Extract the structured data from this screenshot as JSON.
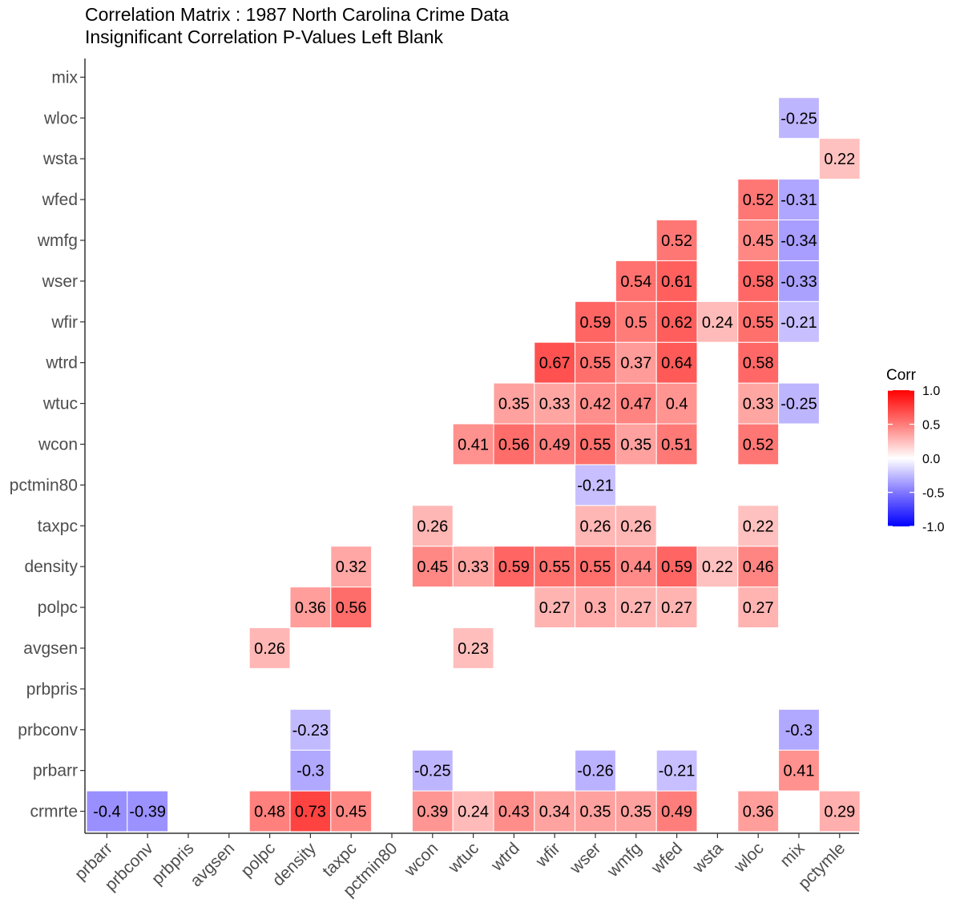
{
  "chart_data": {
    "type": "heatmap",
    "title": "Correlation Matrix : 1987 North Carolina Crime Data",
    "subtitle": "Insignificant Correlation P-Values Left Blank",
    "x_labels": [
      "prbarr",
      "prbconv",
      "prbpris",
      "avgsen",
      "polpc",
      "density",
      "taxpc",
      "pctmin80",
      "wcon",
      "wtuc",
      "wtrd",
      "wfir",
      "wser",
      "wmfg",
      "wfed",
      "wsta",
      "wloc",
      "mix",
      "pctymle"
    ],
    "y_labels": [
      "crmrte",
      "prbarr",
      "prbconv",
      "prbpris",
      "avgsen",
      "polpc",
      "density",
      "taxpc",
      "pctmin80",
      "wcon",
      "wtuc",
      "wtrd",
      "wfir",
      "wser",
      "wmfg",
      "wfed",
      "wsta",
      "wloc",
      "mix"
    ],
    "cells": [
      {
        "x": "prbarr",
        "y": "crmrte",
        "value": -0.4
      },
      {
        "x": "prbconv",
        "y": "crmrte",
        "value": -0.39
      },
      {
        "x": "polpc",
        "y": "crmrte",
        "value": 0.48
      },
      {
        "x": "density",
        "y": "crmrte",
        "value": 0.73
      },
      {
        "x": "taxpc",
        "y": "crmrte",
        "value": 0.45
      },
      {
        "x": "wcon",
        "y": "crmrte",
        "value": 0.39
      },
      {
        "x": "wtuc",
        "y": "crmrte",
        "value": 0.24
      },
      {
        "x": "wtrd",
        "y": "crmrte",
        "value": 0.43
      },
      {
        "x": "wfir",
        "y": "crmrte",
        "value": 0.34
      },
      {
        "x": "wser",
        "y": "crmrte",
        "value": 0.35
      },
      {
        "x": "wmfg",
        "y": "crmrte",
        "value": 0.35
      },
      {
        "x": "wfed",
        "y": "crmrte",
        "value": 0.49
      },
      {
        "x": "wloc",
        "y": "crmrte",
        "value": 0.36
      },
      {
        "x": "pctymle",
        "y": "crmrte",
        "value": 0.29
      },
      {
        "x": "density",
        "y": "prbarr",
        "value": -0.3
      },
      {
        "x": "wcon",
        "y": "prbarr",
        "value": -0.25
      },
      {
        "x": "wser",
        "y": "prbarr",
        "value": -0.26
      },
      {
        "x": "wfed",
        "y": "prbarr",
        "value": -0.21
      },
      {
        "x": "mix",
        "y": "prbarr",
        "value": 0.41
      },
      {
        "x": "density",
        "y": "prbconv",
        "value": -0.23
      },
      {
        "x": "mix",
        "y": "prbconv",
        "value": -0.3
      },
      {
        "x": "polpc",
        "y": "avgsen",
        "value": 0.26
      },
      {
        "x": "wtuc",
        "y": "avgsen",
        "value": 0.23
      },
      {
        "x": "density",
        "y": "polpc",
        "value": 0.36
      },
      {
        "x": "taxpc",
        "y": "polpc",
        "value": 0.56
      },
      {
        "x": "wfir",
        "y": "polpc",
        "value": 0.27
      },
      {
        "x": "wser",
        "y": "polpc",
        "value": 0.3
      },
      {
        "x": "wmfg",
        "y": "polpc",
        "value": 0.27
      },
      {
        "x": "wfed",
        "y": "polpc",
        "value": 0.27
      },
      {
        "x": "wloc",
        "y": "polpc",
        "value": 0.27
      },
      {
        "x": "taxpc",
        "y": "density",
        "value": 0.32
      },
      {
        "x": "wcon",
        "y": "density",
        "value": 0.45
      },
      {
        "x": "wtuc",
        "y": "density",
        "value": 0.33
      },
      {
        "x": "wtrd",
        "y": "density",
        "value": 0.59
      },
      {
        "x": "wfir",
        "y": "density",
        "value": 0.55
      },
      {
        "x": "wser",
        "y": "density",
        "value": 0.55
      },
      {
        "x": "wmfg",
        "y": "density",
        "value": 0.44
      },
      {
        "x": "wfed",
        "y": "density",
        "value": 0.59
      },
      {
        "x": "wsta",
        "y": "density",
        "value": 0.22
      },
      {
        "x": "wloc",
        "y": "density",
        "value": 0.46
      },
      {
        "x": "wcon",
        "y": "taxpc",
        "value": 0.26
      },
      {
        "x": "wser",
        "y": "taxpc",
        "value": 0.26
      },
      {
        "x": "wmfg",
        "y": "taxpc",
        "value": 0.26
      },
      {
        "x": "wloc",
        "y": "taxpc",
        "value": 0.22
      },
      {
        "x": "wser",
        "y": "pctmin80",
        "value": -0.21
      },
      {
        "x": "wtuc",
        "y": "wcon",
        "value": 0.41
      },
      {
        "x": "wtrd",
        "y": "wcon",
        "value": 0.56
      },
      {
        "x": "wfir",
        "y": "wcon",
        "value": 0.49
      },
      {
        "x": "wser",
        "y": "wcon",
        "value": 0.55
      },
      {
        "x": "wmfg",
        "y": "wcon",
        "value": 0.35
      },
      {
        "x": "wfed",
        "y": "wcon",
        "value": 0.51
      },
      {
        "x": "wloc",
        "y": "wcon",
        "value": 0.52
      },
      {
        "x": "wtrd",
        "y": "wtuc",
        "value": 0.35
      },
      {
        "x": "wfir",
        "y": "wtuc",
        "value": 0.33
      },
      {
        "x": "wser",
        "y": "wtuc",
        "value": 0.42
      },
      {
        "x": "wmfg",
        "y": "wtuc",
        "value": 0.47
      },
      {
        "x": "wfed",
        "y": "wtuc",
        "value": 0.4
      },
      {
        "x": "wloc",
        "y": "wtuc",
        "value": 0.33
      },
      {
        "x": "mix",
        "y": "wtuc",
        "value": -0.25
      },
      {
        "x": "wfir",
        "y": "wtrd",
        "value": 0.67
      },
      {
        "x": "wser",
        "y": "wtrd",
        "value": 0.55
      },
      {
        "x": "wmfg",
        "y": "wtrd",
        "value": 0.37
      },
      {
        "x": "wfed",
        "y": "wtrd",
        "value": 0.64
      },
      {
        "x": "wloc",
        "y": "wtrd",
        "value": 0.58
      },
      {
        "x": "wser",
        "y": "wfir",
        "value": 0.59
      },
      {
        "x": "wmfg",
        "y": "wfir",
        "value": 0.5
      },
      {
        "x": "wfed",
        "y": "wfir",
        "value": 0.62
      },
      {
        "x": "wsta",
        "y": "wfir",
        "value": 0.24
      },
      {
        "x": "wloc",
        "y": "wfir",
        "value": 0.55
      },
      {
        "x": "mix",
        "y": "wfir",
        "value": -0.21
      },
      {
        "x": "wmfg",
        "y": "wser",
        "value": 0.54
      },
      {
        "x": "wfed",
        "y": "wser",
        "value": 0.61
      },
      {
        "x": "wloc",
        "y": "wser",
        "value": 0.58
      },
      {
        "x": "mix",
        "y": "wser",
        "value": -0.33
      },
      {
        "x": "wfed",
        "y": "wmfg",
        "value": 0.52
      },
      {
        "x": "wloc",
        "y": "wmfg",
        "value": 0.45
      },
      {
        "x": "mix",
        "y": "wmfg",
        "value": -0.34
      },
      {
        "x": "wloc",
        "y": "wfed",
        "value": 0.52
      },
      {
        "x": "mix",
        "y": "wfed",
        "value": -0.31
      },
      {
        "x": "pctymle",
        "y": "wsta",
        "value": 0.22
      },
      {
        "x": "mix",
        "y": "wloc",
        "value": -0.25
      }
    ],
    "legend": {
      "title": "Corr",
      "ticks": [
        "1.0",
        "0.5",
        "0.0",
        "-0.5",
        "-1.0"
      ],
      "placement": "right",
      "range": [
        -1,
        1
      ]
    },
    "colors": {
      "high": "#ff0000",
      "mid": "#ffffff",
      "low": "#0000ff",
      "tile_border": "#ffffff",
      "axis": "#333333",
      "tick_text": "#4d4d4d"
    }
  }
}
